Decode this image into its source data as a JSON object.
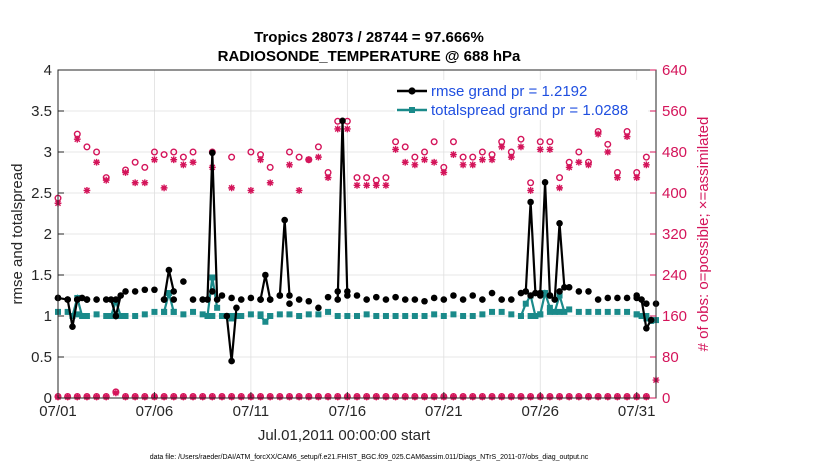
{
  "chart_data": {
    "type": "line",
    "title_line1": "Tropics 28073 / 28744 = 97.666%",
    "title_line2": "RADIOSONDE_TEMPERATURE @ 688 hPa",
    "xlabel": "Jul.01,2011 00:00:00 start",
    "ylabel_left": "rmse and totalspread",
    "ylabel_right": "# of obs: o=possible; ×=assimilated",
    "x_range": [
      1,
      32
    ],
    "x_ticks": [
      1,
      6,
      11,
      16,
      21,
      26,
      31
    ],
    "x_tick_labels": [
      "07/01",
      "07/06",
      "07/11",
      "07/16",
      "07/21",
      "07/26",
      "07/31"
    ],
    "ylim_left": [
      0,
      4
    ],
    "y_ticks_left": [
      "0",
      "0.5",
      "1",
      "1.5",
      "2",
      "2.5",
      "3",
      "3.5",
      "4"
    ],
    "ylim_right": [
      0,
      640
    ],
    "y_ticks_right": [
      "0",
      "80",
      "160",
      "240",
      "320",
      "400",
      "480",
      "560",
      "640"
    ],
    "colors": {
      "rmse": "#000000",
      "spread": "#1a8a8a",
      "obs": "#d4145a"
    },
    "series": [
      {
        "name": "rmse grand pr = 1.2192",
        "axis": "left",
        "x": [
          1.0,
          1.5,
          2.0,
          2.5,
          3.0,
          3.5,
          4.0,
          4.5,
          5.0,
          5.5,
          6.0,
          6.5,
          7.0,
          7.5,
          8.0,
          8.5,
          9.0,
          9.5,
          10.0,
          10.5,
          11.0,
          11.5,
          12.0,
          12.5,
          13.0,
          13.5,
          14.0,
          14.5,
          15.0,
          15.5,
          16.0,
          16.5,
          17.0,
          17.5,
          18.0,
          18.5,
          19.0,
          19.5,
          20.0,
          20.5,
          21.0,
          21.5,
          22.0,
          22.5,
          23.0,
          23.5,
          24.0,
          24.5,
          25.0,
          25.5,
          26.0,
          26.5,
          27.0,
          27.5,
          28.0,
          28.5,
          29.0,
          29.5,
          30.0,
          30.5,
          31.0,
          31.5,
          32.0
        ],
        "values": [
          1.22,
          1.2,
          1.2,
          1.2,
          1.2,
          1.2,
          1.2,
          1.3,
          1.3,
          1.32,
          1.32,
          1.2,
          1.2,
          1.42,
          1.2,
          1.2,
          1.3,
          1.25,
          1.22,
          1.2,
          1.22,
          1.2,
          1.2,
          1.25,
          1.15,
          1.2,
          1.18,
          1.1,
          1.23,
          1.3,
          1.3,
          1.25,
          1.2,
          1.23,
          1.2,
          1.23,
          1.2,
          1.2,
          1.18,
          1.22,
          1.2,
          1.25,
          1.2,
          1.25,
          1.2,
          1.28,
          1.2,
          1.2,
          1.28,
          1.25,
          1.25,
          1.25,
          1.3,
          1.35,
          1.3,
          1.3,
          1.2,
          1.22,
          1.22,
          1.22,
          1.25,
          1.15,
          1.15
        ],
        "connected_segments": [
          [
            [
              1.0,
              1.22
            ],
            [
              1.5,
              1.2
            ],
            [
              1.75,
              0.87
            ],
            [
              2.0,
              1.2
            ],
            [
              2.25,
              1.22
            ],
            [
              2.5,
              1.2
            ]
          ],
          [
            [
              3.75,
              1.2
            ],
            [
              4.0,
              1.0
            ],
            [
              4.25,
              1.25
            ]
          ],
          [
            [
              6.5,
              1.2
            ],
            [
              6.75,
              1.56
            ],
            [
              7.0,
              1.3
            ]
          ],
          [
            [
              8.75,
              1.2
            ],
            [
              9.0,
              2.99
            ],
            [
              9.25,
              1.2
            ]
          ],
          [
            [
              9.75,
              1.0
            ],
            [
              10.0,
              0.45
            ],
            [
              10.25,
              1.1
            ]
          ],
          [
            [
              11.5,
              1.2
            ],
            [
              11.75,
              1.5
            ],
            [
              12.0,
              1.2
            ]
          ],
          [
            [
              12.5,
              1.25
            ],
            [
              12.75,
              2.17
            ],
            [
              13.0,
              1.25
            ]
          ],
          [
            [
              15.5,
              1.2
            ],
            [
              15.75,
              3.38
            ],
            [
              16.0,
              1.25
            ]
          ],
          [
            [
              25.25,
              1.3
            ],
            [
              25.5,
              2.39
            ],
            [
              25.75,
              1.28
            ]
          ],
          [
            [
              26.0,
              1.28
            ],
            [
              26.25,
              2.63
            ],
            [
              26.5,
              1.25
            ]
          ],
          [
            [
              26.75,
              1.2
            ],
            [
              27.0,
              2.13
            ],
            [
              27.25,
              1.35
            ]
          ],
          [
            [
              31.0,
              1.22
            ],
            [
              31.25,
              1.2
            ],
            [
              31.5,
              0.85
            ],
            [
              31.75,
              0.95
            ]
          ]
        ]
      },
      {
        "name": "totalspread grand pr = 1.0288",
        "axis": "left",
        "x": [
          1.0,
          1.5,
          2.0,
          2.5,
          3.0,
          3.5,
          4.0,
          4.5,
          5.0,
          5.5,
          6.0,
          6.5,
          7.0,
          7.5,
          8.0,
          8.5,
          9.0,
          9.5,
          10.0,
          10.5,
          11.0,
          11.5,
          12.0,
          12.5,
          13.0,
          13.5,
          14.0,
          14.5,
          15.0,
          15.5,
          16.0,
          16.5,
          17.0,
          17.5,
          18.0,
          18.5,
          19.0,
          19.5,
          20.0,
          20.5,
          21.0,
          21.5,
          22.0,
          22.5,
          23.0,
          23.5,
          24.0,
          24.5,
          25.0,
          25.5,
          26.0,
          26.5,
          27.0,
          27.5,
          28.0,
          28.5,
          29.0,
          29.5,
          30.0,
          30.5,
          31.0,
          31.5,
          32.0
        ],
        "values": [
          1.05,
          1.05,
          1.02,
          1.0,
          1.02,
          1.0,
          1.0,
          1.0,
          1.0,
          1.02,
          1.05,
          1.05,
          1.05,
          1.02,
          1.05,
          1.02,
          1.0,
          1.0,
          1.0,
          1.0,
          1.02,
          1.02,
          1.0,
          1.02,
          1.02,
          1.0,
          1.02,
          1.02,
          1.05,
          1.0,
          1.0,
          1.0,
          1.02,
          1.0,
          1.0,
          1.0,
          1.0,
          1.0,
          1.0,
          1.02,
          1.0,
          1.02,
          1.0,
          1.0,
          1.02,
          1.05,
          1.05,
          1.02,
          1.0,
          1.0,
          1.02,
          1.05,
          1.05,
          1.08,
          1.05,
          1.05,
          1.05,
          1.05,
          1.05,
          1.05,
          1.02,
          1.0,
          0.95
        ],
        "connected_segments": [
          [
            [
              1.75,
              1.0
            ],
            [
              2.0,
              1.22
            ],
            [
              2.25,
              1.0
            ]
          ],
          [
            [
              3.75,
              1.0
            ],
            [
              4.0,
              1.18
            ],
            [
              4.25,
              1.0
            ]
          ],
          [
            [
              6.5,
              1.05
            ],
            [
              6.75,
              1.28
            ],
            [
              7.0,
              1.05
            ]
          ],
          [
            [
              8.75,
              1.0
            ],
            [
              9.0,
              1.47
            ],
            [
              9.25,
              1.1
            ]
          ],
          [
            [
              9.75,
              1.0
            ],
            [
              10.0,
              0.97
            ],
            [
              10.25,
              1.0
            ]
          ],
          [
            [
              11.5,
              1.0
            ],
            [
              11.75,
              0.93
            ],
            [
              12.0,
              1.0
            ]
          ],
          [
            [
              25.0,
              1.0
            ],
            [
              25.25,
              1.15
            ],
            [
              25.5,
              1.25
            ],
            [
              25.75,
              1.0
            ]
          ],
          [
            [
              26.0,
              1.02
            ],
            [
              26.25,
              1.28
            ],
            [
              26.5,
              1.1
            ]
          ],
          [
            [
              26.75,
              1.05
            ],
            [
              27.0,
              1.25
            ],
            [
              27.25,
              1.05
            ]
          ],
          [
            [
              31.0,
              1.02
            ],
            [
              31.25,
              1.0
            ],
            [
              31.5,
              0.97
            ],
            [
              31.75,
              0.94
            ]
          ]
        ]
      },
      {
        "name": "possible",
        "axis": "right",
        "marker": "o",
        "x": [
          1.0,
          2.0,
          2.5,
          3.0,
          3.5,
          4.5,
          5.0,
          5.5,
          6.0,
          6.5,
          7.0,
          7.5,
          8.0,
          9.0,
          10.0,
          11.0,
          11.5,
          12.0,
          13.0,
          13.5,
          14.0,
          14.5,
          15.0,
          15.5,
          16.0,
          16.5,
          17.0,
          17.5,
          18.0,
          18.5,
          19.0,
          19.5,
          20.0,
          20.5,
          21.0,
          21.5,
          22.0,
          22.5,
          23.0,
          23.5,
          24.0,
          24.5,
          25.0,
          25.5,
          26.0,
          26.5,
          27.0,
          27.5,
          28.0,
          28.5,
          29.0,
          29.5,
          30.0,
          30.5,
          31.0,
          31.5
        ],
        "values": [
          390,
          515,
          490,
          480,
          430,
          445,
          460,
          450,
          480,
          475,
          480,
          470,
          480,
          480,
          470,
          480,
          475,
          450,
          480,
          470,
          465,
          490,
          440,
          540,
          540,
          430,
          430,
          425,
          430,
          500,
          490,
          470,
          480,
          500,
          450,
          500,
          470,
          470,
          480,
          475,
          500,
          480,
          505,
          420,
          500,
          500,
          430,
          460,
          480,
          460,
          520,
          495,
          440,
          520,
          440,
          470
        ],
        "baseline_x": [
          1.0,
          1.5,
          2.0,
          2.5,
          3.0,
          3.5,
          4.0,
          4.5,
          5.0,
          5.5,
          6.0,
          6.5,
          7.0,
          7.5,
          8.0,
          8.5,
          9.0,
          9.5,
          10.0,
          10.5,
          11.0,
          11.5,
          12.0,
          12.5,
          13.0,
          13.5,
          14.0,
          14.5,
          15.0,
          15.5,
          16.0,
          16.5,
          17.0,
          17.5,
          18.0,
          18.5,
          19.0,
          19.5,
          20.0,
          20.5,
          21.0,
          21.5,
          22.0,
          22.5,
          23.0,
          23.5,
          24.0,
          24.5,
          25.0,
          25.5,
          26.0,
          26.5,
          27.0,
          27.5,
          28.0,
          28.5,
          29.0,
          29.5,
          30.0,
          30.5,
          31.0,
          31.5
        ],
        "baseline_values": [
          3,
          3,
          3,
          3,
          3,
          3,
          12,
          3,
          3,
          3,
          3,
          3,
          3,
          3,
          3,
          3,
          3,
          3,
          3,
          3,
          3,
          3,
          3,
          3,
          3,
          3,
          3,
          3,
          3,
          3,
          3,
          3,
          3,
          3,
          3,
          3,
          3,
          3,
          3,
          3,
          3,
          3,
          3,
          3,
          3,
          3,
          3,
          3,
          3,
          3,
          3,
          3,
          3,
          3,
          3,
          3,
          3,
          3,
          3,
          3,
          3,
          3
        ]
      },
      {
        "name": "assimilated",
        "axis": "right",
        "marker": "x",
        "x": [
          1.0,
          2.0,
          2.5,
          3.0,
          3.5,
          4.5,
          5.0,
          5.5,
          6.0,
          6.5,
          7.0,
          7.5,
          8.0,
          9.0,
          10.0,
          11.0,
          11.5,
          12.0,
          13.0,
          13.5,
          14.0,
          14.5,
          15.0,
          15.5,
          16.0,
          16.5,
          17.0,
          17.5,
          18.0,
          18.5,
          19.0,
          19.5,
          20.0,
          20.5,
          21.0,
          21.5,
          22.0,
          22.5,
          23.0,
          23.5,
          24.0,
          24.5,
          25.0,
          25.5,
          26.0,
          26.5,
          27.0,
          27.5,
          28.0,
          28.5,
          29.0,
          29.5,
          30.0,
          30.5,
          31.0,
          31.5
        ],
        "values": [
          380,
          505,
          405,
          460,
          425,
          440,
          420,
          420,
          465,
          410,
          465,
          455,
          460,
          450,
          410,
          405,
          465,
          420,
          455,
          405,
          465,
          470,
          430,
          525,
          525,
          415,
          415,
          415,
          415,
          485,
          460,
          455,
          465,
          460,
          440,
          475,
          455,
          455,
          465,
          465,
          490,
          470,
          490,
          405,
          485,
          485,
          410,
          450,
          460,
          455,
          515,
          480,
          430,
          510,
          430,
          455
        ],
        "baseline_x": [
          1.0,
          1.5,
          2.0,
          2.5,
          3.0,
          3.5,
          4.0,
          4.5,
          5.0,
          5.5,
          6.0,
          6.5,
          7.0,
          7.5,
          8.0,
          8.5,
          9.0,
          9.5,
          10.0,
          10.5,
          11.0,
          11.5,
          12.0,
          12.5,
          13.0,
          13.5,
          14.0,
          14.5,
          15.0,
          15.5,
          16.0,
          16.5,
          17.0,
          17.5,
          18.0,
          18.5,
          19.0,
          19.5,
          20.0,
          20.5,
          21.0,
          21.5,
          22.0,
          22.5,
          23.0,
          23.5,
          24.0,
          24.5,
          25.0,
          25.5,
          26.0,
          26.5,
          27.0,
          27.5,
          28.0,
          28.5,
          29.0,
          29.5,
          30.0,
          30.5,
          31.0,
          31.5,
          32.0
        ],
        "baseline_values": [
          2,
          2,
          2,
          2,
          2,
          2,
          10,
          2,
          2,
          2,
          2,
          2,
          2,
          2,
          2,
          2,
          2,
          2,
          2,
          2,
          2,
          2,
          2,
          2,
          2,
          2,
          2,
          2,
          2,
          2,
          2,
          2,
          2,
          2,
          2,
          2,
          2,
          2,
          2,
          2,
          2,
          2,
          2,
          2,
          2,
          2,
          2,
          2,
          2,
          2,
          2,
          2,
          2,
          2,
          2,
          2,
          2,
          2,
          2,
          2,
          2,
          2,
          35
        ]
      }
    ],
    "legend_location": "top-right",
    "footer": "data file: /Users/raeder/DAI/ATM_forcXX/CAM6_setup/f.e21.FHIST_BGC.f09_025.CAM6assim.011/Diags_NTrS_2011-07/obs_diag_output.nc"
  }
}
